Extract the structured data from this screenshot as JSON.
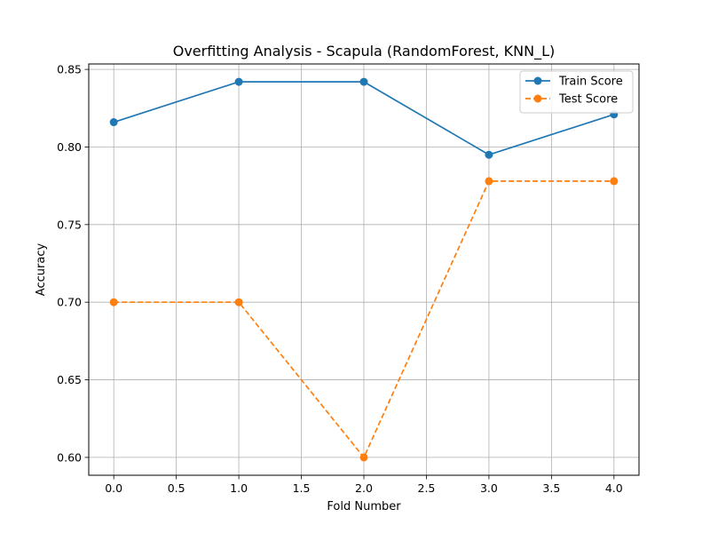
{
  "chart_data": {
    "type": "line",
    "title": "Overfitting Analysis - Scapula (RandomForest, KNN_L)",
    "xlabel": "Fold Number",
    "ylabel": "Accuracy",
    "xlim": [
      -0.2,
      4.2
    ],
    "ylim": [
      0.5885,
      0.8535
    ],
    "x_ticks": [
      "0.0",
      "0.5",
      "1.0",
      "1.5",
      "2.0",
      "2.5",
      "3.0",
      "3.5",
      "4.0"
    ],
    "x_tick_values": [
      0,
      0.5,
      1,
      1.5,
      2,
      2.5,
      3,
      3.5,
      4
    ],
    "y_ticks": [
      "0.60",
      "0.65",
      "0.70",
      "0.75",
      "0.80",
      "0.85"
    ],
    "y_tick_values": [
      0.6,
      0.65,
      0.7,
      0.75,
      0.8,
      0.85
    ],
    "grid": true,
    "legend_position": "top-right",
    "x": [
      0,
      1,
      2,
      3,
      4
    ],
    "series": [
      {
        "name": "Train Score",
        "values": [
          0.816,
          0.842,
          0.842,
          0.795,
          0.821
        ],
        "color": "#1f77b4",
        "line_style": "solid",
        "marker": "circle"
      },
      {
        "name": "Test Score",
        "values": [
          0.7,
          0.7,
          0.6,
          0.778,
          0.778
        ],
        "color": "#ff7f0e",
        "line_style": "dashed",
        "marker": "circle"
      }
    ]
  }
}
